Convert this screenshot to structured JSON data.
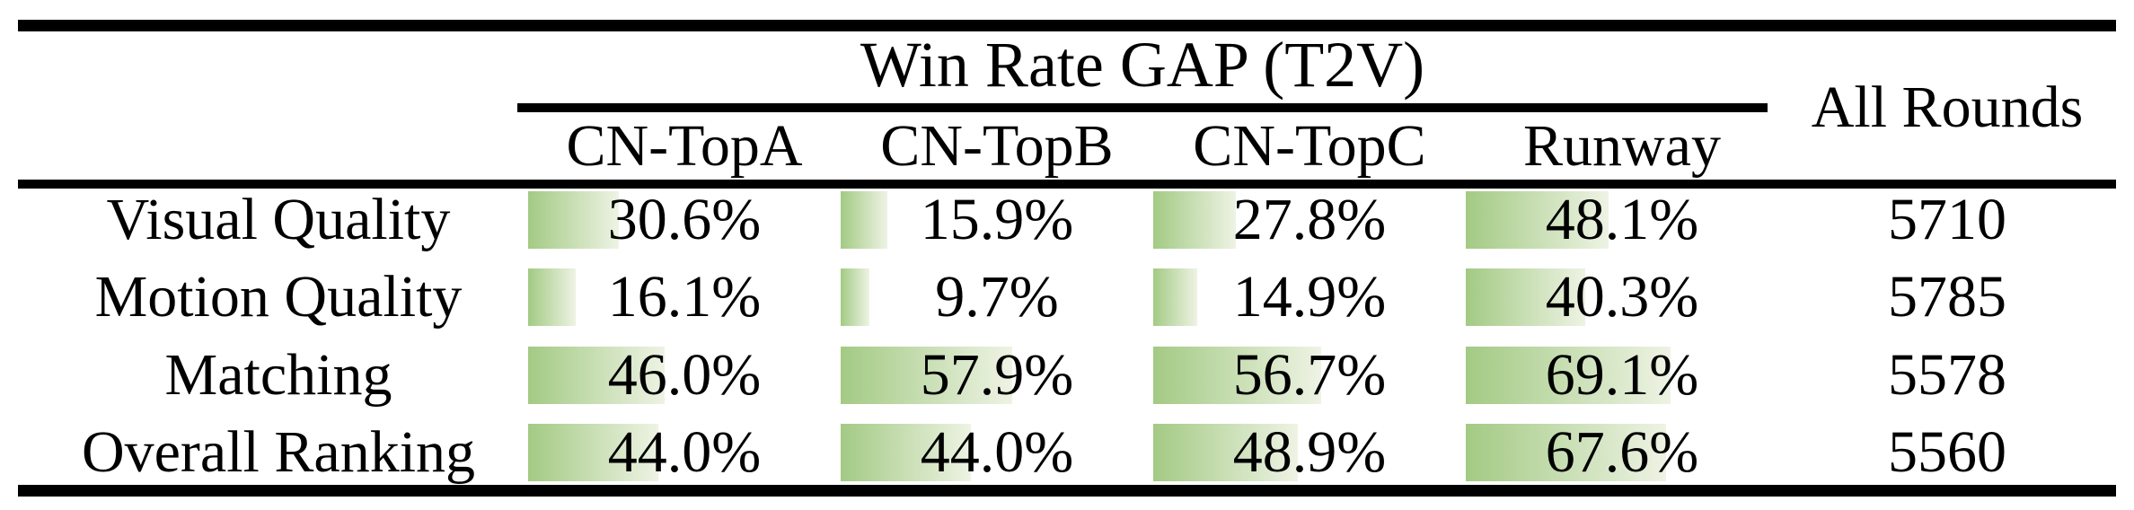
{
  "title": "Win Rate GAP (T2V)",
  "all_rounds_label": "All Rounds",
  "columns": [
    "CN-TopA",
    "CN-TopB",
    "CN-TopC",
    "Runway"
  ],
  "rows": [
    {
      "label": "Visual Quality",
      "values": [
        30.6,
        15.9,
        27.8,
        48.1
      ],
      "all_rounds": 5710
    },
    {
      "label": "Motion Quality",
      "values": [
        16.1,
        9.7,
        14.9,
        40.3
      ],
      "all_rounds": 5785
    },
    {
      "label": "Matching",
      "values": [
        46.0,
        57.9,
        56.7,
        69.1
      ],
      "all_rounds": 5578
    },
    {
      "label": "Overall Ranking",
      "values": [
        44.0,
        44.0,
        48.9,
        67.6
      ],
      "all_rounds": 5560
    }
  ],
  "colors": {
    "bar_green": "#a3ca84",
    "bar_fade": "#eef3e4",
    "rule_black": "#000000"
  },
  "chart_data": {
    "type": "table",
    "title": "Win Rate GAP (T2V)",
    "columns": [
      "CN-TopA",
      "CN-TopB",
      "CN-TopC",
      "Runway",
      "All Rounds"
    ],
    "row_labels": [
      "Visual Quality",
      "Motion Quality",
      "Matching",
      "Overall Ranking"
    ],
    "series": [
      {
        "name": "CN-TopA",
        "unit": "%",
        "values": [
          30.6,
          16.1,
          46.0,
          44.0
        ]
      },
      {
        "name": "CN-TopB",
        "unit": "%",
        "values": [
          15.9,
          9.7,
          57.9,
          44.0
        ]
      },
      {
        "name": "CN-TopC",
        "unit": "%",
        "values": [
          27.8,
          14.9,
          56.7,
          48.9
        ]
      },
      {
        "name": "Runway",
        "unit": "%",
        "values": [
          48.1,
          40.3,
          69.1,
          67.6
        ]
      },
      {
        "name": "All Rounds",
        "unit": "rounds",
        "values": [
          5710,
          5785,
          5578,
          5560
        ]
      }
    ],
    "layout_hints": {
      "in_cell_bars": "horizontal green gradient bars, width proportional to percent, left-anchored",
      "rules": "booktabs style: thick top/bottom rules, thick rule under headers, thin rule under spanning title",
      "title_spans": [
        "CN-TopA",
        "CN-TopB",
        "CN-TopC",
        "Runway"
      ],
      "all_rounds_spans_both_header_rows": true
    }
  }
}
